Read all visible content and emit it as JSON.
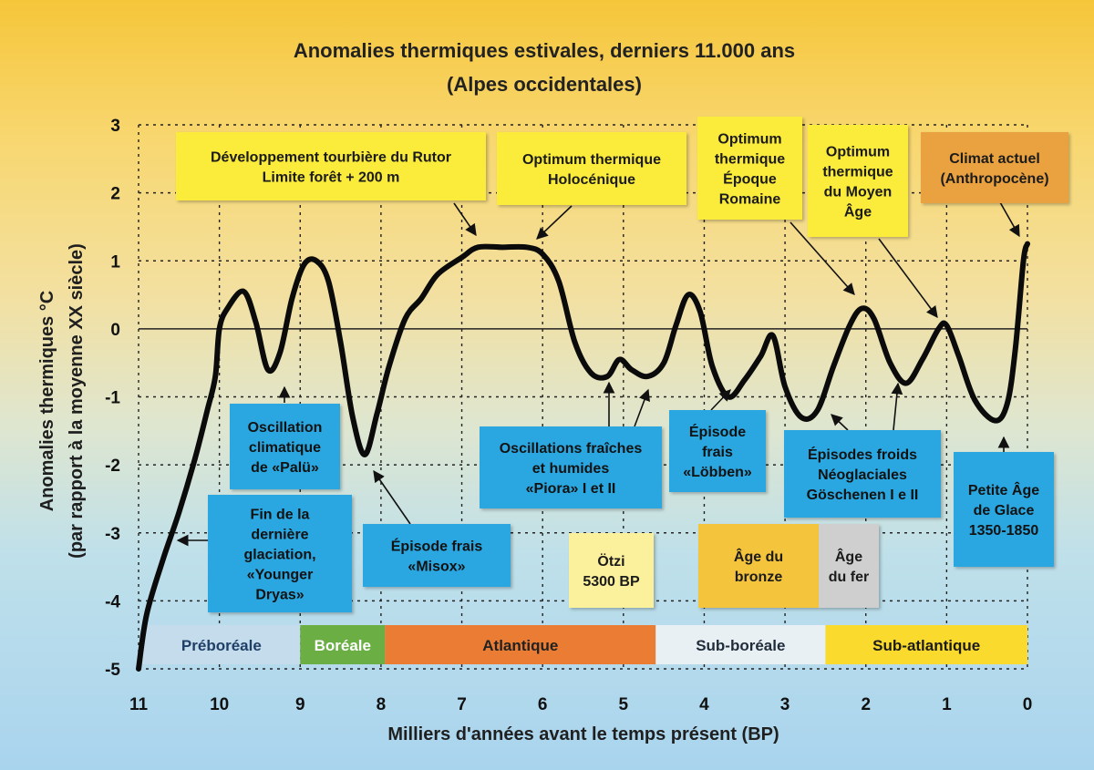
{
  "title": "Anomalies thermiques estivales, derniers 11.000 ans",
  "subtitle": "(Alpes occidentales)",
  "chart_data": {
    "type": "line",
    "title": "Anomalies thermiques estivales, derniers 11.000 ans",
    "subtitle": "(Alpes occidentales)",
    "xlabel": "Milliers d'années avant le temps présent (BP)",
    "ylabel": "Anomalies thermiques °C",
    "ylabel2": "(par rapport à la moyenne XX siècle)",
    "xlim": [
      11,
      0
    ],
    "ylim": [
      -5,
      3
    ],
    "x_ticks": [
      "11",
      "10",
      "9",
      "8",
      "7",
      "6",
      "5",
      "4",
      "3",
      "2",
      "1",
      "0"
    ],
    "y_ticks": [
      "3",
      "2",
      "1",
      "0",
      "-1",
      "-2",
      "-3",
      "-4",
      "-5"
    ],
    "grid": true,
    "series": [
      {
        "values": [
          [
            11.0,
            -5.0
          ],
          [
            10.9,
            -4.2
          ],
          [
            10.7,
            -3.4
          ],
          [
            10.5,
            -2.7
          ],
          [
            10.3,
            -1.9
          ],
          [
            10.15,
            -1.2
          ],
          [
            10.05,
            -0.7
          ],
          [
            10.0,
            0.0
          ],
          [
            9.9,
            0.3
          ],
          [
            9.7,
            0.55
          ],
          [
            9.55,
            0.1
          ],
          [
            9.4,
            -0.6
          ],
          [
            9.25,
            -0.35
          ],
          [
            9.1,
            0.45
          ],
          [
            8.95,
            0.95
          ],
          [
            8.8,
            1.0
          ],
          [
            8.65,
            0.7
          ],
          [
            8.5,
            -0.2
          ],
          [
            8.35,
            -1.3
          ],
          [
            8.2,
            -1.85
          ],
          [
            8.05,
            -1.25
          ],
          [
            7.9,
            -0.55
          ],
          [
            7.7,
            0.15
          ],
          [
            7.5,
            0.45
          ],
          [
            7.3,
            0.8
          ],
          [
            7.0,
            1.05
          ],
          [
            6.8,
            1.2
          ],
          [
            6.5,
            1.2
          ],
          [
            6.2,
            1.2
          ],
          [
            6.0,
            1.1
          ],
          [
            5.8,
            0.7
          ],
          [
            5.6,
            -0.2
          ],
          [
            5.4,
            -0.65
          ],
          [
            5.2,
            -0.7
          ],
          [
            5.05,
            -0.45
          ],
          [
            4.9,
            -0.6
          ],
          [
            4.7,
            -0.7
          ],
          [
            4.5,
            -0.5
          ],
          [
            4.35,
            0.05
          ],
          [
            4.2,
            0.5
          ],
          [
            4.05,
            0.25
          ],
          [
            3.9,
            -0.55
          ],
          [
            3.7,
            -1.0
          ],
          [
            3.5,
            -0.75
          ],
          [
            3.3,
            -0.4
          ],
          [
            3.15,
            -0.1
          ],
          [
            3.0,
            -0.85
          ],
          [
            2.8,
            -1.3
          ],
          [
            2.6,
            -1.2
          ],
          [
            2.4,
            -0.55
          ],
          [
            2.2,
            0.05
          ],
          [
            2.05,
            0.3
          ],
          [
            1.9,
            0.15
          ],
          [
            1.7,
            -0.5
          ],
          [
            1.5,
            -0.8
          ],
          [
            1.3,
            -0.45
          ],
          [
            1.1,
            0.0
          ],
          [
            1.0,
            0.05
          ],
          [
            0.85,
            -0.4
          ],
          [
            0.65,
            -1.05
          ],
          [
            0.4,
            -1.35
          ],
          [
            0.25,
            -1.1
          ],
          [
            0.15,
            -0.3
          ],
          [
            0.05,
            1.0
          ],
          [
            0.0,
            1.25
          ]
        ]
      }
    ],
    "periods": [
      {
        "label": "Préboréale",
        "color": "#c5dced"
      },
      {
        "label": "Boréale",
        "color": "#6aae44"
      },
      {
        "label": "Atlantique",
        "color": "#ea7d33"
      },
      {
        "label": "Sub-boréale",
        "color": "#e9f0f4"
      },
      {
        "label": "Sub-atlantique",
        "color": "#fadb2d"
      }
    ],
    "annotations": [
      {
        "lines": [
          "Développement tourbière du Rutor",
          "Limite forêt + 200 m"
        ],
        "color": "#fbeb3a"
      },
      {
        "lines": [
          "Optimum thermique",
          "Holocénique"
        ],
        "color": "#fbeb3a"
      },
      {
        "lines": [
          "Optimum",
          "thermique",
          "Époque",
          "Romaine"
        ],
        "color": "#fbeb3a"
      },
      {
        "lines": [
          "Optimum",
          "thermique",
          "du Moyen",
          "Âge"
        ],
        "color": "#fbeb3a"
      },
      {
        "lines": [
          "Climat actuel",
          "(Anthropocène)"
        ],
        "color": "#eaa140"
      },
      {
        "lines": [
          "Oscillation",
          "climatique",
          "de «Palü»"
        ],
        "color": "#29a7e1"
      },
      {
        "lines": [
          "Fin de la",
          "dernière",
          "glaciation,",
          "«Younger",
          "Dryas»"
        ],
        "color": "#29a7e1"
      },
      {
        "lines": [
          "Épisode frais",
          "«Misox»"
        ],
        "color": "#29a7e1"
      },
      {
        "lines": [
          "Oscillations fraîches",
          "et humides",
          "«Piora» I et II"
        ],
        "color": "#29a7e1"
      },
      {
        "lines": [
          "Épisode",
          "frais",
          "«Löbben»"
        ],
        "color": "#29a7e1"
      },
      {
        "lines": [
          "Épisodes froids",
          "Néoglaciales",
          "Göschenen I e II"
        ],
        "color": "#29a7e1"
      },
      {
        "lines": [
          "Petite Âge",
          "de Glace",
          "1350-1850"
        ],
        "color": "#29a7e1"
      },
      {
        "lines": [
          "Ötzi",
          "5300 BP"
        ],
        "color": "#fbf09c"
      },
      {
        "lines": [
          "Âge du",
          "bronze"
        ],
        "color": "#f5c43c"
      },
      {
        "lines": [
          "Âge",
          "du fer"
        ],
        "color": "#cfcfcf"
      }
    ]
  }
}
